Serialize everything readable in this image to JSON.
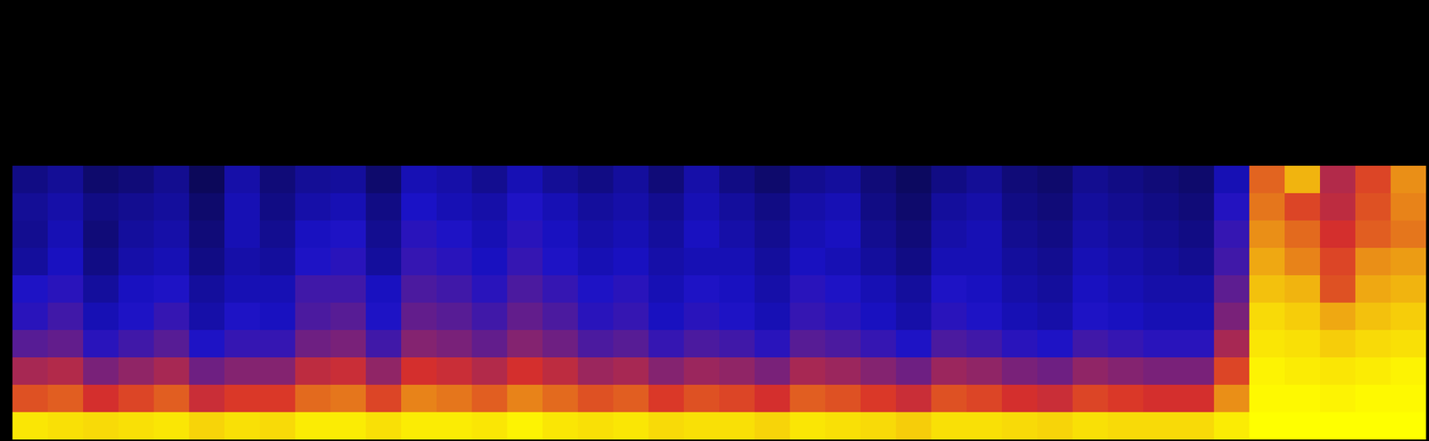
{
  "chart_data": {
    "type": "heatmap",
    "tick_labels": false,
    "zlim": [
      0,
      100
    ],
    "cells": [
      [
        0,
        0,
        0,
        0,
        0,
        0,
        0,
        0,
        0,
        0,
        0,
        0,
        0,
        0,
        0,
        0,
        0,
        0,
        0,
        0,
        0,
        0,
        0,
        0,
        0,
        0,
        0,
        0,
        0,
        0,
        0,
        0,
        0,
        0,
        0,
        0,
        0,
        0,
        0,
        0
      ],
      [
        0,
        0,
        0,
        0,
        0,
        0,
        0,
        0,
        0,
        0,
        0,
        0,
        0,
        0,
        0,
        0,
        0,
        0,
        0,
        0,
        0,
        0,
        0,
        0,
        0,
        0,
        0,
        0,
        0,
        0,
        0,
        0,
        0,
        0,
        0,
        0,
        0,
        0,
        0,
        0
      ],
      [
        0,
        0,
        0,
        0,
        0,
        0,
        0,
        0,
        0,
        0,
        0,
        0,
        0,
        0,
        0,
        0,
        0,
        0,
        0,
        0,
        0,
        0,
        0,
        0,
        0,
        0,
        0,
        0,
        0,
        0,
        0,
        0,
        0,
        0,
        0,
        0,
        0,
        0,
        0,
        0
      ],
      [
        0,
        0,
        0,
        0,
        0,
        0,
        0,
        0,
        0,
        0,
        0,
        0,
        0,
        0,
        0,
        0,
        0,
        0,
        0,
        0,
        0,
        0,
        0,
        0,
        0,
        0,
        0,
        0,
        0,
        0,
        0,
        0,
        0,
        0,
        0,
        0,
        0,
        0,
        0,
        0
      ],
      [
        0,
        0,
        0,
        0,
        0,
        0,
        0,
        0,
        0,
        0,
        0,
        0,
        0,
        0,
        0,
        0,
        0,
        0,
        0,
        0,
        0,
        0,
        0,
        0,
        0,
        0,
        0,
        0,
        0,
        0,
        0,
        0,
        0,
        0,
        0,
        0,
        0,
        0,
        0,
        0
      ],
      [
        0,
        0,
        0,
        0,
        0,
        0,
        0,
        0,
        0,
        0,
        0,
        0,
        0,
        0,
        0,
        0,
        0,
        0,
        0,
        0,
        0,
        0,
        0,
        0,
        0,
        0,
        0,
        0,
        0,
        0,
        0,
        0,
        0,
        0,
        0,
        0,
        0,
        0,
        0,
        0
      ],
      [
        22,
        25,
        18,
        20,
        24,
        15,
        28,
        20,
        25,
        26,
        18,
        30,
        28,
        24,
        30,
        25,
        22,
        26,
        20,
        28,
        22,
        18,
        24,
        26,
        20,
        16,
        22,
        25,
        20,
        18,
        24,
        22,
        20,
        18,
        30,
        75,
        88,
        60,
        70,
        82
      ],
      [
        25,
        28,
        22,
        24,
        26,
        18,
        30,
        22,
        28,
        30,
        22,
        33,
        30,
        28,
        34,
        30,
        26,
        28,
        24,
        30,
        26,
        22,
        28,
        30,
        22,
        18,
        26,
        28,
        22,
        20,
        26,
        24,
        22,
        20,
        35,
        78,
        70,
        62,
        72,
        80
      ],
      [
        24,
        30,
        20,
        26,
        28,
        20,
        30,
        24,
        32,
        34,
        24,
        36,
        34,
        30,
        36,
        32,
        28,
        30,
        26,
        32,
        28,
        24,
        30,
        32,
        24,
        20,
        28,
        30,
        24,
        22,
        28,
        26,
        24,
        22,
        38,
        82,
        76,
        66,
        74,
        78
      ],
      [
        26,
        32,
        22,
        28,
        30,
        22,
        28,
        26,
        34,
        36,
        26,
        38,
        36,
        32,
        38,
        34,
        30,
        32,
        28,
        30,
        30,
        26,
        32,
        30,
        26,
        22,
        30,
        30,
        26,
        24,
        30,
        28,
        26,
        24,
        40,
        86,
        80,
        70,
        82,
        84
      ],
      [
        34,
        36,
        26,
        32,
        34,
        26,
        30,
        30,
        40,
        40,
        32,
        42,
        40,
        36,
        42,
        38,
        34,
        36,
        30,
        34,
        32,
        28,
        36,
        34,
        30,
        26,
        34,
        32,
        28,
        26,
        32,
        30,
        28,
        28,
        45,
        90,
        88,
        72,
        86,
        88
      ],
      [
        36,
        40,
        30,
        34,
        38,
        28,
        34,
        32,
        42,
        44,
        34,
        46,
        44,
        40,
        46,
        42,
        36,
        38,
        32,
        36,
        34,
        30,
        38,
        36,
        32,
        28,
        36,
        34,
        30,
        28,
        34,
        32,
        30,
        30,
        50,
        94,
        92,
        86,
        90,
        92
      ],
      [
        44,
        46,
        36,
        40,
        44,
        34,
        38,
        38,
        48,
        50,
        40,
        52,
        50,
        46,
        52,
        48,
        42,
        44,
        38,
        42,
        40,
        36,
        44,
        42,
        38,
        34,
        42,
        40,
        36,
        34,
        40,
        38,
        36,
        36,
        58,
        96,
        95,
        92,
        94,
        95
      ],
      [
        58,
        60,
        50,
        54,
        58,
        48,
        52,
        52,
        62,
        64,
        54,
        66,
        64,
        60,
        66,
        62,
        56,
        58,
        52,
        56,
        54,
        50,
        58,
        56,
        52,
        48,
        56,
        54,
        50,
        48,
        54,
        52,
        50,
        50,
        70,
        98,
        97,
        96,
        97,
        98
      ],
      [
        72,
        74,
        66,
        70,
        74,
        64,
        68,
        68,
        76,
        78,
        70,
        80,
        78,
        74,
        80,
        76,
        72,
        74,
        68,
        72,
        70,
        66,
        74,
        72,
        68,
        64,
        72,
        70,
        66,
        64,
        70,
        68,
        66,
        66,
        82,
        99,
        99,
        98,
        99,
        99
      ],
      [
        96,
        95,
        94,
        95,
        96,
        93,
        95,
        94,
        97,
        97,
        95,
        97,
        97,
        96,
        98,
        96,
        95,
        96,
        94,
        95,
        95,
        93,
        96,
        95,
        94,
        92,
        95,
        95,
        94,
        93,
        95,
        94,
        94,
        94,
        97,
        100,
        100,
        100,
        100,
        100
      ]
    ]
  }
}
